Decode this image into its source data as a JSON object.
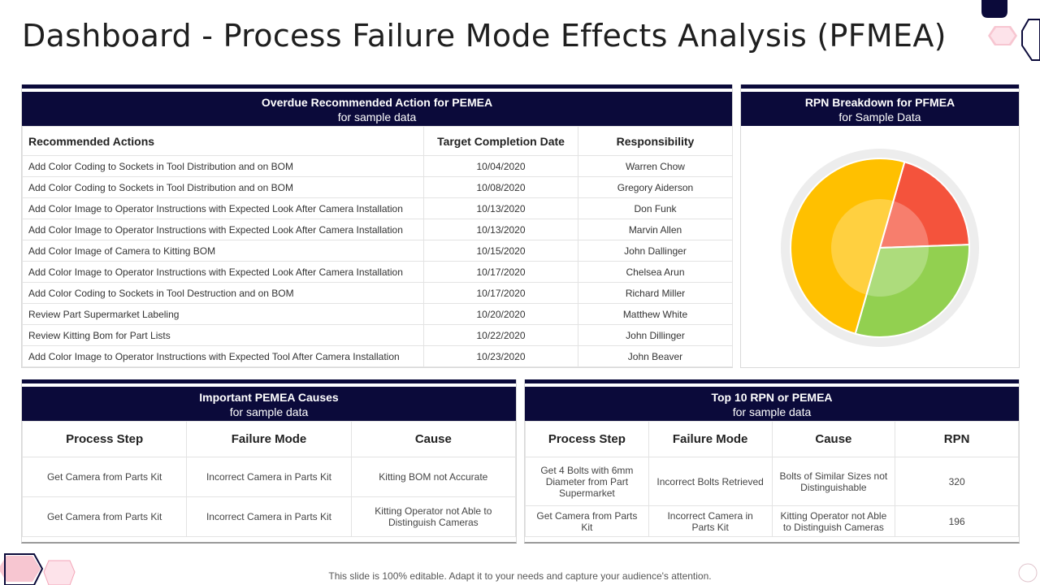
{
  "title": "Dashboard - Process Failure Mode Effects Analysis (PFMEA)",
  "overdue": {
    "title": "Overdue Recommended Action for PEMEA",
    "subtitle": "for sample data",
    "columns": [
      "Recommended Actions",
      "Target Completion Date",
      "Responsibility"
    ],
    "rows": [
      {
        "action": "Add Color Coding to Sockets in Tool Distribution and on BOM",
        "date": "10/04/2020",
        "owner": "Warren Chow"
      },
      {
        "action": "Add Color Coding to Sockets in Tool Distribution and on BOM",
        "date": "10/08/2020",
        "owner": "Gregory Aiderson"
      },
      {
        "action": "Add Color Image to Operator Instructions with Expected Look After  Camera Installation",
        "date": "10/13/2020",
        "owner": "Don Funk"
      },
      {
        "action": "Add Color Image to Operator Instructions with Expected Look After  Camera Installation",
        "date": "10/13/2020",
        "owner": "Marvin Allen"
      },
      {
        "action": "Add Color Image of Camera to Kitting BOM",
        "date": "10/15/2020",
        "owner": "John Dallinger"
      },
      {
        "action": "Add Color Image to Operator Instructions with Expected Look After  Camera Installation",
        "date": "10/17/2020",
        "owner": "Chelsea Arun"
      },
      {
        "action": "Add Color Coding to Sockets in Tool Destruction and on BOM",
        "date": "10/17/2020",
        "owner": "Richard Miller"
      },
      {
        "action": "Review Part Supermarket Labeling",
        "date": "10/20/2020",
        "owner": "Matthew White"
      },
      {
        "action": "Review Kitting Bom for Part Lists",
        "date": "10/22/2020",
        "owner": "John Dillinger"
      },
      {
        "action": "Add Color Image to Operator Instructions with Expected Tool After Camera Installation",
        "date": "10/23/2020",
        "owner": "John Beaver"
      }
    ]
  },
  "rpn": {
    "title": "RPN Breakdown for PFMEA",
    "subtitle": "for Sample Data"
  },
  "chart_data": {
    "type": "pie",
    "title": "RPN Breakdown for PFMEA",
    "subtitle": "for Sample Data",
    "slices": [
      {
        "name": "Red",
        "value": 20,
        "color": "#f4533c"
      },
      {
        "name": "Green",
        "value": 30,
        "color": "#92d050"
      },
      {
        "name": "Yellow",
        "value": 50,
        "color": "#ffc000"
      }
    ],
    "start_angle_deg": 16
  },
  "causes": {
    "title": "Important PEMEA Causes",
    "subtitle": "for sample data",
    "columns": [
      "Process Step",
      "Failure Mode",
      "Cause"
    ],
    "rows": [
      {
        "step": "Get Camera from Parts Kit",
        "mode": "Incorrect Camera in Parts Kit",
        "cause": "Kitting BOM not Accurate"
      },
      {
        "step": "Get Camera from Parts Kit",
        "mode": "Incorrect Camera in Parts Kit",
        "cause": "Kitting Operator not Able to Distinguish Cameras"
      }
    ]
  },
  "top10": {
    "title": "Top 10 RPN or PEMEA",
    "subtitle": "for sample data",
    "columns": [
      "Process Step",
      "Failure Mode",
      "Cause",
      "RPN"
    ],
    "rows": [
      {
        "step": "Get 4 Bolts with 6mm Diameter from Part Supermarket",
        "mode": "Incorrect Bolts Retrieved",
        "cause": "Bolts of Similar Sizes not Distinguishable",
        "rpn": "320"
      },
      {
        "step": "Get Camera from Parts Kit",
        "mode": "Incorrect Camera in Parts Kit",
        "cause": "Kitting Operator not Able to Distinguish Cameras",
        "rpn": "196"
      }
    ]
  },
  "footer": "This slide is 100% editable. Adapt it to your needs and capture your audience's attention.",
  "colors": {
    "navy": "#0b0a3a",
    "pink": "#f4a6b8",
    "pie_track": "#ededed"
  }
}
